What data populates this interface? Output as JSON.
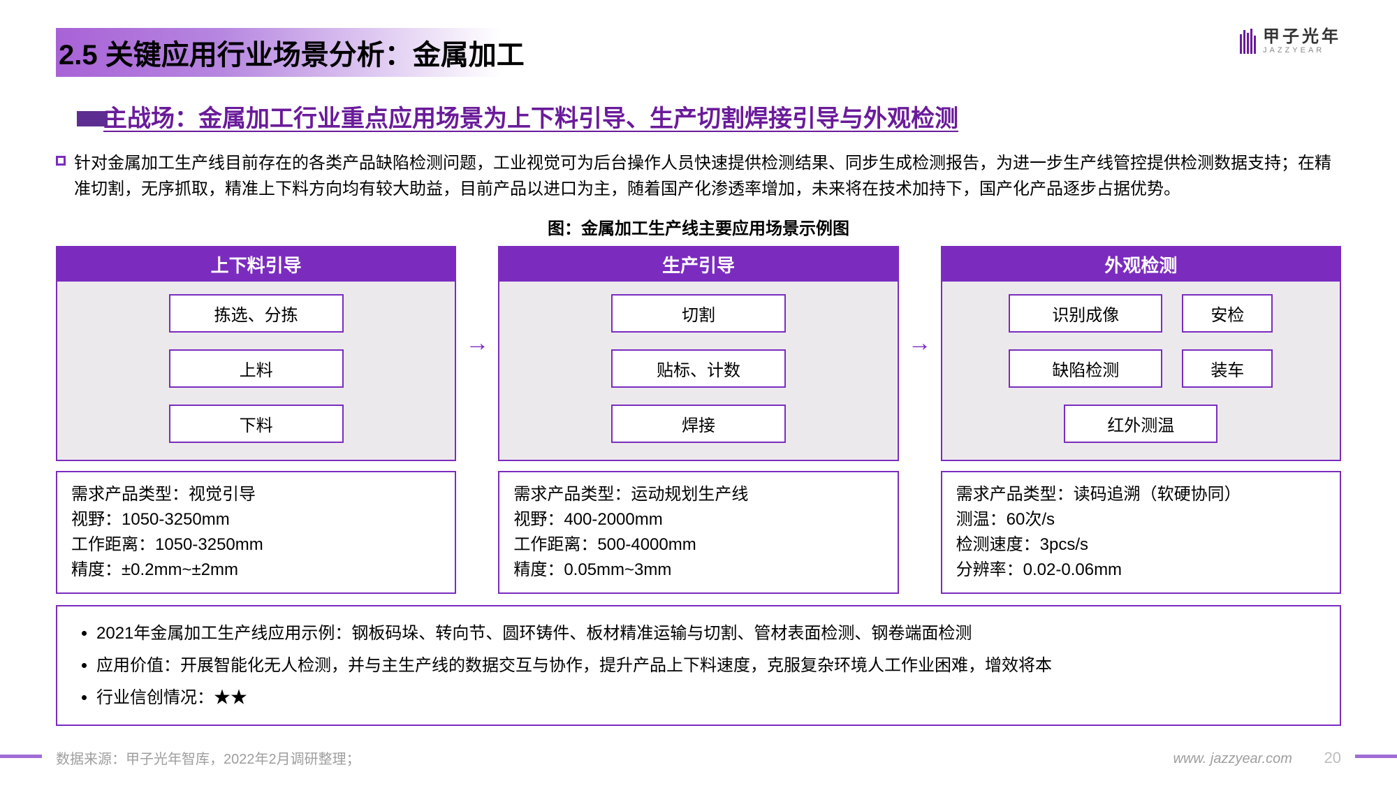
{
  "brand": {
    "cn": "甲子光年",
    "en": "JAZZYEAR"
  },
  "title": "2.5 关键应用行业场景分析：金属加工",
  "subtitle": "主战场：金属加工行业重点应用场景为上下料引导、生产切割焊接引导与外观检测",
  "paragraph": "针对金属加工生产线目前存在的各类产品缺陷检测问题，工业视觉可为后台操作人员快速提供检测结果、同步生成检测报告，为进一步生产线管控提供检测数据支持；在精准切割，无序抓取，精准上下料方向均有较大助益，目前产品以进口为主，随着国产化渗透率增加，未来将在技术加持下，国产化产品逐步占据优势。",
  "figure_title": "图：金属加工生产线主要应用场景示例图",
  "columns": [
    {
      "header": "上下料引导",
      "layout": "single",
      "items": [
        "拣选、分拣",
        "上料",
        "下料"
      ],
      "spec": "需求产品类型：视觉引导\n视野：1050-3250mm\n工作距离：1050-3250mm\n精度：±0.2mm~±2mm"
    },
    {
      "header": "生产引导",
      "layout": "single",
      "items": [
        "切割",
        "贴标、计数",
        "焊接"
      ],
      "spec": "需求产品类型：运动规划生产线\n视野：400-2000mm\n工作距离：500-4000mm\n精度：0.05mm~3mm"
    },
    {
      "header": "外观检测",
      "layout": "double",
      "rows": [
        [
          "识别成像",
          "安检"
        ],
        [
          "缺陷检测",
          "装车"
        ],
        [
          "红外测温"
        ]
      ],
      "spec": "需求产品类型：读码追溯（软硬协同）\n测温：60次/s\n检测速度：3pcs/s\n分辨率：0.02-0.06mm"
    }
  ],
  "bottom_bullets": [
    "2021年金属加工生产线应用示例：钢板码垛、转向节、圆环铸件、板材精准运输与切割、管材表面检测、钢卷端面检测",
    "应用价值：开展智能化无人检测，并与主生产线的数据交互与协作，提升产品上下料速度，克服复杂环境人工作业困难，增效将本",
    "行业信创情况：★★"
  ],
  "footer": {
    "source": "数据来源：甲子光年智库，2022年2月调研整理；",
    "url": "www. jazzyear.com",
    "page": "20"
  },
  "colors": {
    "brand_purple": "#7b2cbf",
    "accent_purple": "#6a1b9a",
    "card_bg": "#ece9ec"
  }
}
